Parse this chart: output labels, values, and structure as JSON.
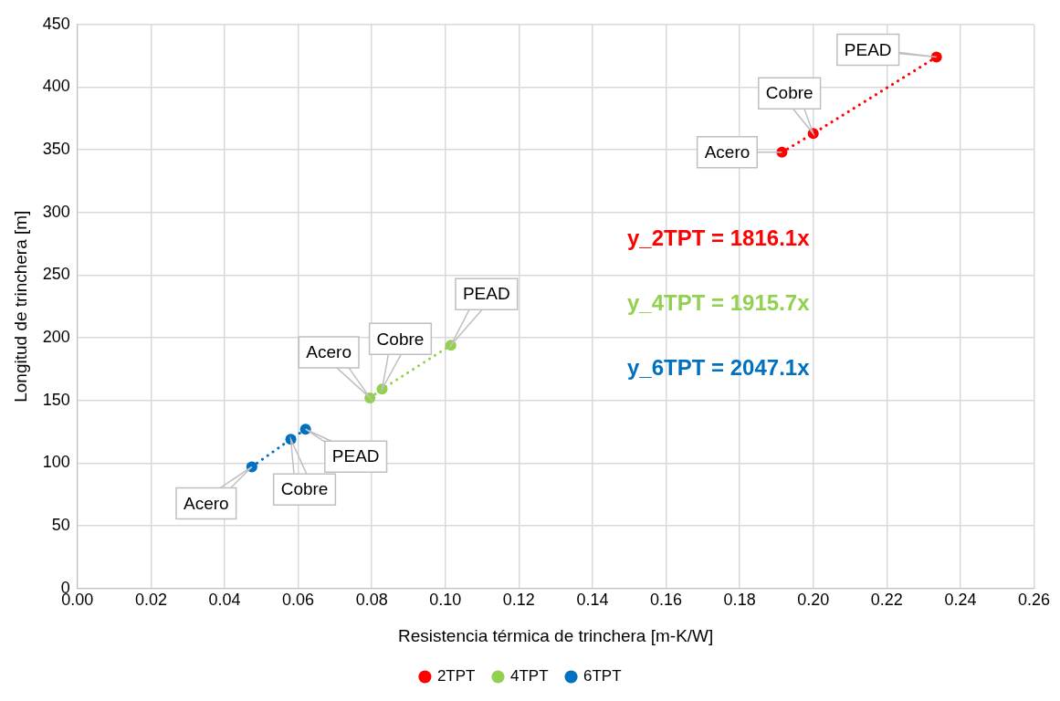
{
  "chart_data": {
    "type": "line",
    "xlabel": "Resistencia térmica de trinchera [m-K/W]",
    "ylabel": "Longitud de trinchera [m]",
    "xlim": [
      0,
      0.26
    ],
    "xticks": [
      {
        "value": 0,
        "label": "0.00"
      },
      {
        "value": 0.02,
        "label": "0.02"
      },
      {
        "value": 0.04,
        "label": "0.04"
      },
      {
        "value": 0.06,
        "label": "0.06"
      },
      {
        "value": 0.08,
        "label": "0.08"
      },
      {
        "value": 0.1,
        "label": "0.10"
      },
      {
        "value": 0.12,
        "label": "0.12"
      },
      {
        "value": 0.14,
        "label": "0.14"
      },
      {
        "value": 0.16,
        "label": "0.16"
      },
      {
        "value": 0.18,
        "label": "0.18"
      },
      {
        "value": 0.2,
        "label": "0.20"
      },
      {
        "value": 0.22,
        "label": "0.22"
      },
      {
        "value": 0.24,
        "label": "0.24"
      },
      {
        "value": 0.26,
        "label": "0.26"
      }
    ],
    "ylim": [
      0,
      450
    ],
    "yticks": [
      0,
      50,
      100,
      150,
      200,
      250,
      300,
      350,
      400,
      450
    ],
    "series": [
      {
        "name": "2TPT",
        "color": "#ff0000",
        "x": [
          0.1915,
          0.2,
          0.2335
        ],
        "values": [
          348,
          363,
          424
        ]
      },
      {
        "name": "4TPT",
        "color": "#92d050",
        "x": [
          0.0795,
          0.0828,
          0.1015
        ],
        "values": [
          152,
          159,
          194
        ]
      },
      {
        "name": "6TPT",
        "color": "#0070c0",
        "x": [
          0.0474,
          0.058,
          0.062
        ],
        "values": [
          97,
          119,
          127
        ]
      }
    ],
    "marker": "circle",
    "line_style": "dotted",
    "grid": true,
    "legend": "bottom",
    "annotations": [
      {
        "text": "Acero",
        "x": 0.1915,
        "y": 348
      },
      {
        "text": "Cobre",
        "x": 0.2,
        "y": 363
      },
      {
        "text": "PEAD",
        "x": 0.2335,
        "y": 424
      },
      {
        "text": "Acero",
        "x": 0.0795,
        "y": 152
      },
      {
        "text": "Cobre",
        "x": 0.0828,
        "y": 159
      },
      {
        "text": "PEAD",
        "x": 0.1015,
        "y": 194
      },
      {
        "text": "Acero",
        "x": 0.0474,
        "y": 97
      },
      {
        "text": "Cobre",
        "x": 0.058,
        "y": 119
      },
      {
        "text": "PEAD",
        "x": 0.062,
        "y": 127
      },
      "y_2TPT = 1816.1x",
      "y_4TPT = 1915.7x",
      "y_6TPT = 2047.1x"
    ]
  }
}
